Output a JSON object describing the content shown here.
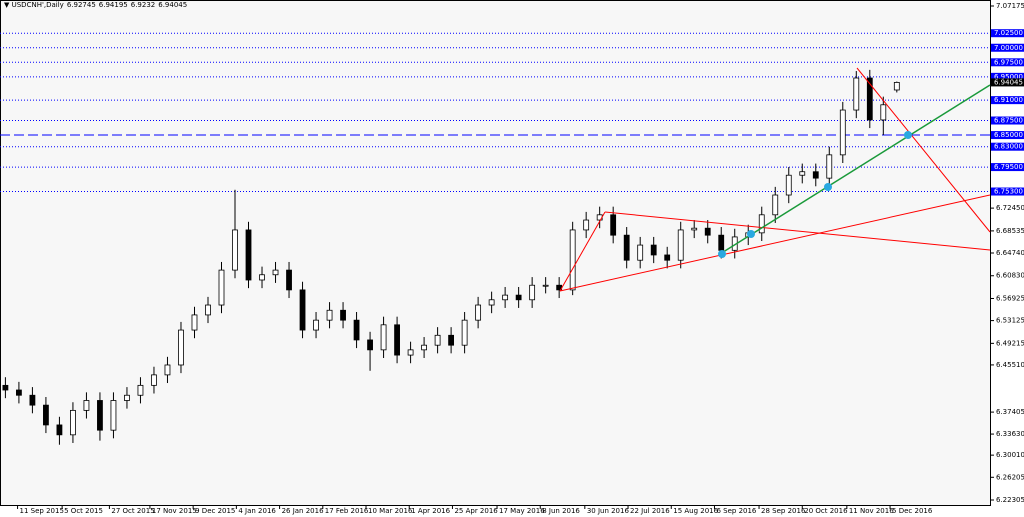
{
  "chart_data": {
    "type": "candlestick",
    "title": "USDCNH',Daily",
    "color": "#000000",
    "open": [
      6.42,
      6.412,
      6.403,
      6.386,
      6.352,
      6.335,
      6.377,
      6.394,
      6.343,
      6.394,
      6.403,
      6.42,
      6.438,
      6.455,
      6.515,
      6.541,
      6.558,
      6.618,
      6.687,
      6.601,
      6.61,
      6.618,
      6.584,
      6.515,
      6.532,
      6.549,
      6.532,
      6.498,
      6.481,
      6.524,
      6.472,
      6.481,
      6.489,
      6.506,
      6.489,
      6.532,
      6.558,
      6.567,
      6.575,
      6.567,
      6.592,
      6.592,
      6.584,
      6.687,
      6.704,
      6.713,
      6.678,
      6.635,
      6.661,
      6.644,
      6.635,
      6.687,
      6.69,
      6.678,
      6.652,
      6.675,
      6.682,
      6.713,
      6.747,
      6.781,
      6.787,
      6.776,
      6.816,
      6.893,
      6.948,
      6.876,
      6.92745
    ],
    "high": [
      6.434,
      6.426,
      6.417,
      6.4,
      6.366,
      6.391,
      6.408,
      6.408,
      6.408,
      6.417,
      6.434,
      6.452,
      6.469,
      6.529,
      6.555,
      6.572,
      6.632,
      6.756,
      6.701,
      6.624,
      6.632,
      6.632,
      6.598,
      6.546,
      6.563,
      6.563,
      6.546,
      6.512,
      6.538,
      6.538,
      6.495,
      6.503,
      6.52,
      6.52,
      6.546,
      6.572,
      6.581,
      6.589,
      6.589,
      6.606,
      6.606,
      6.606,
      6.701,
      6.718,
      6.727,
      6.727,
      6.692,
      6.675,
      6.675,
      6.658,
      6.701,
      6.704,
      6.704,
      6.692,
      6.689,
      6.696,
      6.727,
      6.761,
      6.795,
      6.801,
      6.801,
      6.83,
      6.907,
      6.96,
      6.962,
      6.916,
      6.94195
    ],
    "low": [
      6.398,
      6.389,
      6.372,
      6.338,
      6.318,
      6.321,
      6.363,
      6.325,
      6.329,
      6.38,
      6.389,
      6.406,
      6.424,
      6.441,
      6.501,
      6.527,
      6.544,
      6.604,
      6.587,
      6.587,
      6.596,
      6.57,
      6.501,
      6.501,
      6.518,
      6.518,
      6.484,
      6.445,
      6.467,
      6.458,
      6.458,
      6.467,
      6.475,
      6.475,
      6.475,
      6.518,
      6.544,
      6.553,
      6.553,
      6.553,
      6.578,
      6.57,
      6.575,
      6.673,
      6.69,
      6.664,
      6.621,
      6.621,
      6.63,
      6.621,
      6.621,
      6.673,
      6.664,
      6.638,
      6.638,
      6.661,
      6.668,
      6.699,
      6.733,
      6.767,
      6.762,
      6.762,
      6.802,
      6.879,
      6.862,
      6.85,
      6.9232
    ],
    "close": [
      6.412,
      6.403,
      6.386,
      6.352,
      6.335,
      6.377,
      6.394,
      6.343,
      6.394,
      6.403,
      6.42,
      6.438,
      6.455,
      6.515,
      6.541,
      6.558,
      6.618,
      6.687,
      6.601,
      6.61,
      6.618,
      6.584,
      6.515,
      6.532,
      6.549,
      6.532,
      6.498,
      6.481,
      6.524,
      6.472,
      6.481,
      6.489,
      6.506,
      6.489,
      6.532,
      6.558,
      6.567,
      6.575,
      6.567,
      6.592,
      6.592,
      6.584,
      6.687,
      6.704,
      6.713,
      6.678,
      6.635,
      6.661,
      6.644,
      6.635,
      6.687,
      6.69,
      6.678,
      6.652,
      6.675,
      6.682,
      6.713,
      6.747,
      6.781,
      6.787,
      6.776,
      6.816,
      6.893,
      6.948,
      6.876,
      6.902,
      6.94045
    ],
    "xlim": [
      -0.4,
      72.9
    ],
    "xticks": [
      {
        "value": 0.9,
        "label": "11 Sep 2015"
      },
      {
        "value": 4.2,
        "label": "5 Oct 2015"
      },
      {
        "value": 7.7,
        "label": "27 Oct 2015"
      },
      {
        "value": 10.7,
        "label": "17 Nov 2015"
      },
      {
        "value": 13.9,
        "label": "9 Dec 2015"
      },
      {
        "value": 17.1,
        "label": "4 Jan 2016"
      },
      {
        "value": 20.3,
        "label": "26 Jan 2016"
      },
      {
        "value": 23.5,
        "label": "17 Feb 2016"
      },
      {
        "value": 26.7,
        "label": "10 Mar 2016"
      },
      {
        "value": 29.9,
        "label": "1 Apr 2016"
      },
      {
        "value": 33.1,
        "label": "25 Apr 2016"
      },
      {
        "value": 36.4,
        "label": "17 May 2016"
      },
      {
        "value": 39.6,
        "label": "8 Jun 2016"
      },
      {
        "value": 42.9,
        "label": "30 Jun 2016"
      },
      {
        "value": 46.1,
        "label": "22 Jul 2016"
      },
      {
        "value": 49.3,
        "label": "15 Aug 2016"
      },
      {
        "value": 52.5,
        "label": "6 Sep 2016"
      },
      {
        "value": 55.8,
        "label": "28 Sep 2016"
      },
      {
        "value": 59.0,
        "label": "20 Oct 2016"
      },
      {
        "value": 62.3,
        "label": "11 Nov 2016"
      },
      {
        "value": 65.5,
        "label": "5 Dec 2016"
      }
    ],
    "ylim": [
      6.2196,
      7.0786
    ],
    "yticks": [
      7.07175,
      {
        "value": 6.7245,
        "label": "6.72450"
      },
      6.68535,
      {
        "value": 6.6474,
        "label": "6.64740"
      },
      {
        "value": 6.6083,
        "label": "6.60830"
      },
      6.56925,
      6.53125,
      6.49215,
      {
        "value": 6.4551,
        "label": "6.45510"
      },
      6.37405,
      {
        "value": 6.3363,
        "label": "6.33630"
      },
      {
        "value": 6.3001,
        "label": "6.30010"
      },
      6.26205,
      6.22305
    ],
    "levels": [
      {
        "value": 7.025,
        "label": "7.02500"
      },
      {
        "value": 7.0,
        "label": "7.00000"
      },
      {
        "value": 6.975,
        "label": "6.97500"
      },
      {
        "value": 6.95,
        "label": "6.95000"
      },
      {
        "value": 6.91,
        "label": "6.91000"
      },
      {
        "value": 6.875,
        "label": "6.87500"
      },
      {
        "value": 6.85,
        "label": "6.85000",
        "style": "dashed"
      },
      {
        "value": 6.83,
        "label": "6.83000"
      },
      {
        "value": 6.795,
        "label": "6.79500"
      },
      {
        "value": 6.753,
        "label": "6.75300"
      }
    ],
    "level_color": "#0000ff"
  }
}
